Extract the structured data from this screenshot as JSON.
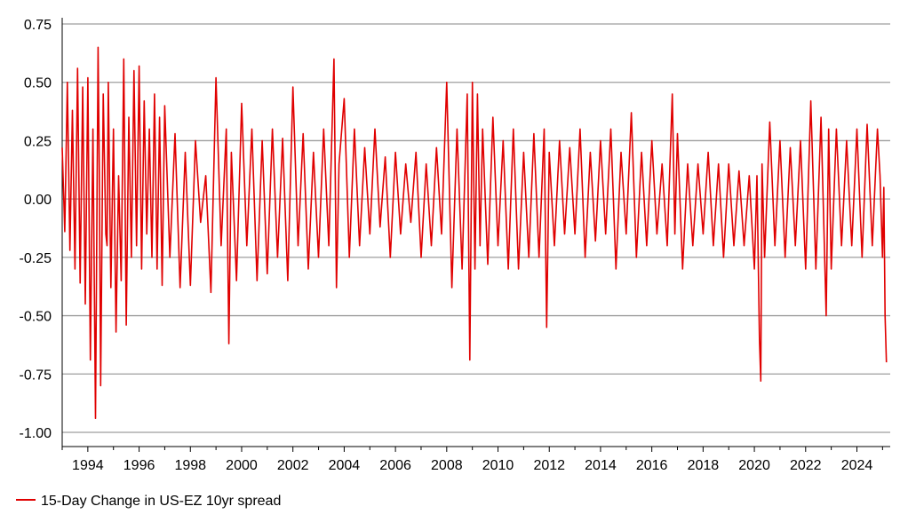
{
  "chart_data": {
    "type": "line",
    "title": "",
    "xlabel": "",
    "ylabel": "",
    "ylim": [
      -1.0,
      0.75
    ],
    "xlim": [
      1993.0,
      2025.3
    ],
    "grid": "horizontal",
    "legend_position": "bottom-left",
    "colors": {
      "series": "#e00000",
      "grid": "#9e9e9e",
      "axis": "#000000"
    },
    "y_ticks": [
      0.75,
      0.5,
      0.25,
      0.0,
      -0.25,
      -0.5,
      -0.75,
      -1.0
    ],
    "y_tick_labels": [
      "0.75",
      "0.50",
      "0.25",
      "0.00",
      "-0.25",
      "-0.50",
      "-0.75",
      "-1.00"
    ],
    "x_ticks": [
      1994,
      1996,
      1998,
      2000,
      2002,
      2004,
      2006,
      2008,
      2010,
      2012,
      2014,
      2016,
      2018,
      2020,
      2022,
      2024
    ],
    "x_tick_labels": [
      "1994",
      "1996",
      "1998",
      "2000",
      "2002",
      "2004",
      "2006",
      "2008",
      "2010",
      "2012",
      "2014",
      "2016",
      "2018",
      "2020",
      "2022",
      "2024"
    ],
    "series": [
      {
        "name": "15-Day Change in US-EZ 10yr spread",
        "x": [
          1993.0,
          1993.1,
          1993.2,
          1993.3,
          1993.4,
          1993.5,
          1993.6,
          1993.7,
          1993.8,
          1993.9,
          1994.0,
          1994.1,
          1994.2,
          1994.3,
          1994.4,
          1994.45,
          1994.5,
          1994.6,
          1994.7,
          1994.75,
          1994.8,
          1994.9,
          1995.0,
          1995.1,
          1995.2,
          1995.3,
          1995.4,
          1995.5,
          1995.6,
          1995.7,
          1995.8,
          1995.9,
          1996.0,
          1996.1,
          1996.2,
          1996.3,
          1996.4,
          1996.5,
          1996.6,
          1996.7,
          1996.8,
          1996.9,
          1997.0,
          1997.2,
          1997.4,
          1997.6,
          1997.8,
          1998.0,
          1998.2,
          1998.4,
          1998.6,
          1998.8,
          1999.0,
          1999.2,
          1999.4,
          1999.5,
          1999.6,
          1999.8,
          2000.0,
          2000.2,
          2000.4,
          2000.6,
          2000.8,
          2001.0,
          2001.2,
          2001.4,
          2001.6,
          2001.8,
          2002.0,
          2002.2,
          2002.4,
          2002.6,
          2002.8,
          2003.0,
          2003.2,
          2003.4,
          2003.6,
          2003.7,
          2003.8,
          2004.0,
          2004.2,
          2004.4,
          2004.6,
          2004.8,
          2005.0,
          2005.2,
          2005.4,
          2005.6,
          2005.8,
          2006.0,
          2006.2,
          2006.4,
          2006.6,
          2006.8,
          2007.0,
          2007.2,
          2007.4,
          2007.6,
          2007.8,
          2008.0,
          2008.2,
          2008.4,
          2008.6,
          2008.8,
          2008.9,
          2009.0,
          2009.1,
          2009.2,
          2009.3,
          2009.4,
          2009.6,
          2009.8,
          2010.0,
          2010.2,
          2010.4,
          2010.6,
          2010.8,
          2011.0,
          2011.2,
          2011.4,
          2011.6,
          2011.8,
          2011.9,
          2012.0,
          2012.2,
          2012.4,
          2012.6,
          2012.8,
          2013.0,
          2013.2,
          2013.4,
          2013.6,
          2013.8,
          2014.0,
          2014.2,
          2014.4,
          2014.6,
          2014.8,
          2015.0,
          2015.2,
          2015.4,
          2015.6,
          2015.8,
          2016.0,
          2016.2,
          2016.4,
          2016.6,
          2016.8,
          2016.9,
          2017.0,
          2017.2,
          2017.4,
          2017.6,
          2017.8,
          2018.0,
          2018.2,
          2018.4,
          2018.6,
          2018.8,
          2019.0,
          2019.2,
          2019.4,
          2019.6,
          2019.8,
          2020.0,
          2020.1,
          2020.2,
          2020.25,
          2020.3,
          2020.4,
          2020.6,
          2020.8,
          2021.0,
          2021.2,
          2021.4,
          2021.6,
          2021.8,
          2022.0,
          2022.2,
          2022.4,
          2022.6,
          2022.8,
          2022.9,
          2023.0,
          2023.2,
          2023.4,
          2023.6,
          2023.8,
          2024.0,
          2024.2,
          2024.4,
          2024.6,
          2024.8,
          2024.9,
          2025.0,
          2025.05,
          2025.1,
          2025.15
        ],
        "values": [
          0.22,
          -0.14,
          0.5,
          -0.22,
          0.38,
          -0.3,
          0.56,
          -0.36,
          0.48,
          -0.45,
          0.52,
          -0.69,
          0.3,
          -0.94,
          0.65,
          0.12,
          -0.8,
          0.45,
          -0.15,
          -0.2,
          0.5,
          -0.38,
          0.3,
          -0.57,
          0.1,
          -0.35,
          0.6,
          -0.54,
          0.35,
          -0.25,
          0.55,
          -0.2,
          0.57,
          -0.3,
          0.42,
          -0.15,
          0.3,
          -0.25,
          0.45,
          -0.3,
          0.35,
          -0.37,
          0.4,
          -0.25,
          0.28,
          -0.38,
          0.2,
          -0.37,
          0.25,
          -0.1,
          0.1,
          -0.4,
          0.52,
          -0.2,
          0.3,
          -0.62,
          0.2,
          -0.35,
          0.41,
          -0.2,
          0.3,
          -0.35,
          0.25,
          -0.32,
          0.3,
          -0.25,
          0.26,
          -0.35,
          0.48,
          -0.2,
          0.28,
          -0.3,
          0.2,
          -0.25,
          0.3,
          -0.2,
          0.6,
          -0.38,
          0.15,
          0.43,
          -0.25,
          0.3,
          -0.2,
          0.22,
          -0.15,
          0.3,
          -0.12,
          0.18,
          -0.25,
          0.2,
          -0.15,
          0.15,
          -0.1,
          0.2,
          -0.25,
          0.15,
          -0.2,
          0.22,
          -0.15,
          0.5,
          -0.38,
          0.3,
          -0.3,
          0.45,
          -0.69,
          0.5,
          -0.3,
          0.45,
          -0.2,
          0.3,
          -0.28,
          0.35,
          -0.2,
          0.25,
          -0.3,
          0.3,
          -0.3,
          0.2,
          -0.25,
          0.28,
          -0.25,
          0.3,
          -0.55,
          0.2,
          -0.2,
          0.25,
          -0.15,
          0.22,
          -0.15,
          0.3,
          -0.25,
          0.2,
          -0.18,
          0.25,
          -0.15,
          0.3,
          -0.3,
          0.2,
          -0.15,
          0.37,
          -0.25,
          0.2,
          -0.2,
          0.25,
          -0.15,
          0.15,
          -0.2,
          0.45,
          -0.15,
          0.28,
          -0.3,
          0.15,
          -0.2,
          0.15,
          -0.15,
          0.2,
          -0.2,
          0.15,
          -0.25,
          0.15,
          -0.2,
          0.12,
          -0.2,
          0.1,
          -0.3,
          0.1,
          -0.6,
          -0.78,
          0.15,
          -0.25,
          0.33,
          -0.2,
          0.25,
          -0.25,
          0.22,
          -0.2,
          0.25,
          -0.3,
          0.42,
          -0.3,
          0.35,
          -0.5,
          0.3,
          -0.3,
          0.3,
          -0.2,
          0.25,
          -0.2,
          0.3,
          -0.25,
          0.32,
          -0.2,
          0.3,
          0.1,
          -0.25,
          0.05,
          -0.5,
          -0.7
        ]
      }
    ]
  }
}
